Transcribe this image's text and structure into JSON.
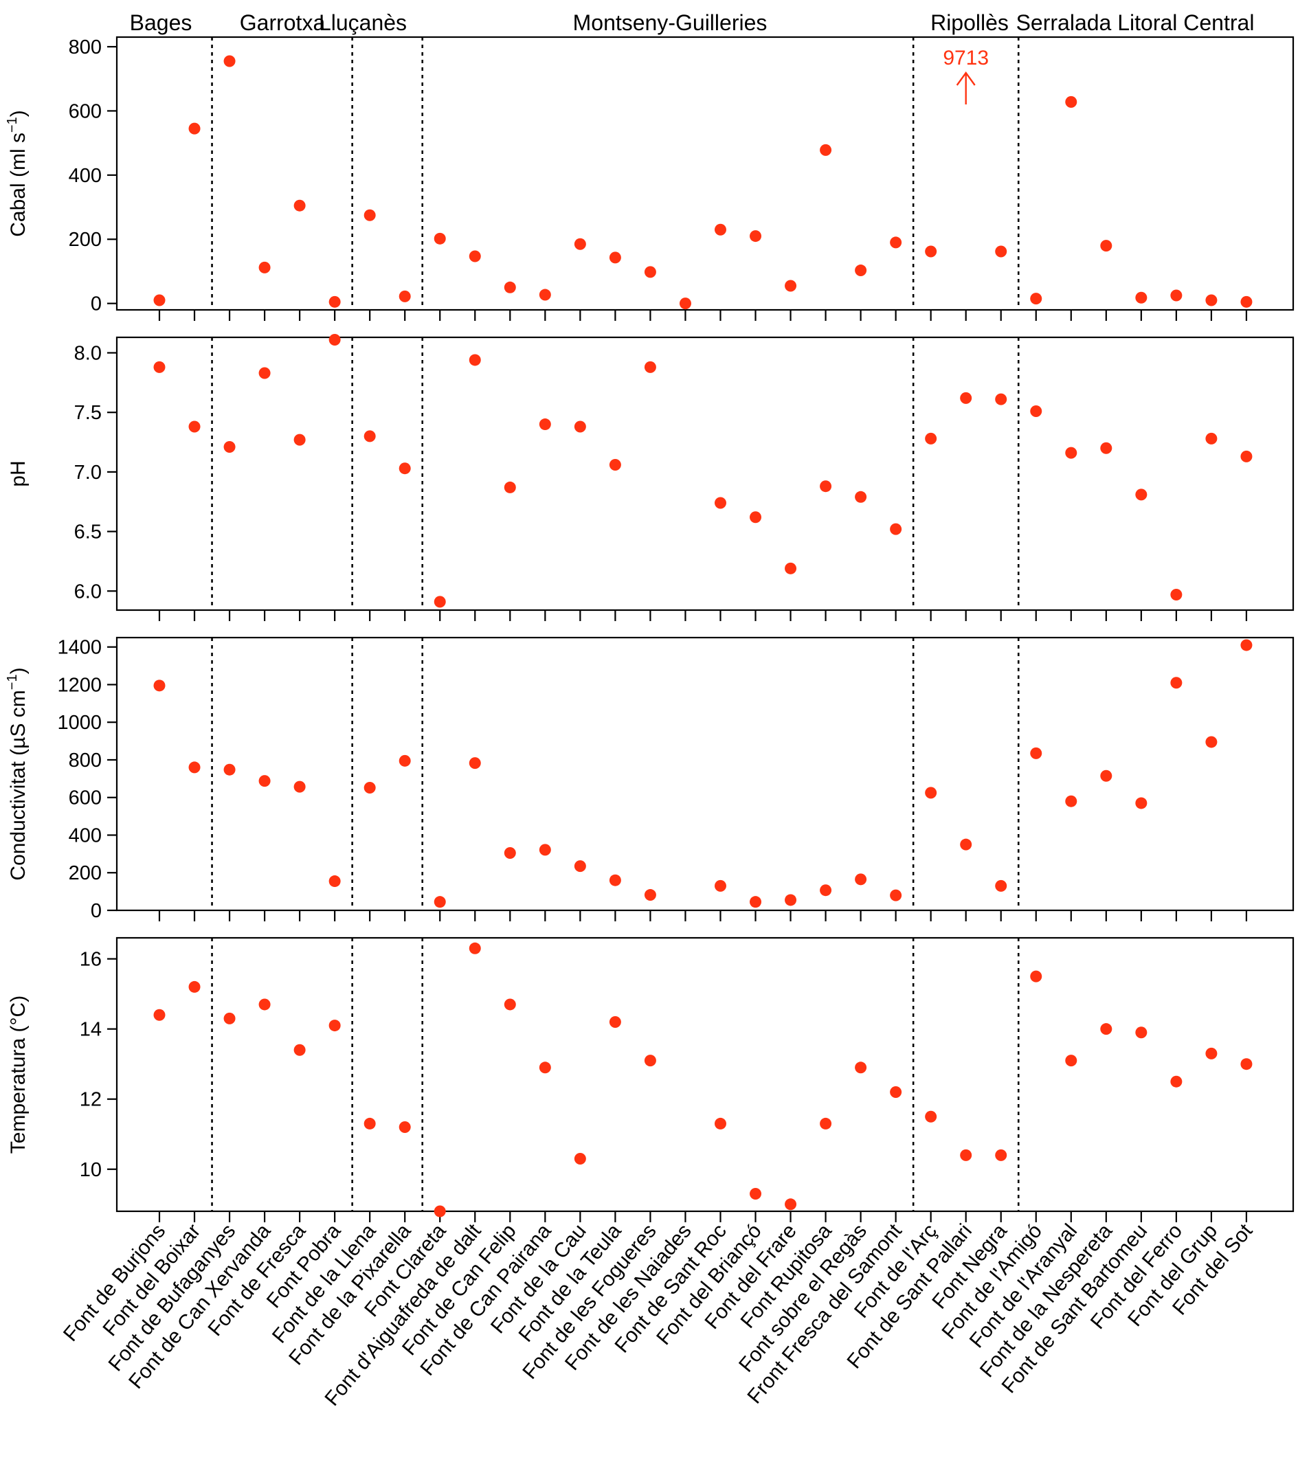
{
  "chart_data": {
    "type": "scatter",
    "point_color": "#ff3311",
    "sites": [
      "Font de Burjons",
      "Font del Boixar",
      "Font de Bufaganyes",
      "Font de Can Xervanda",
      "Font de Fresca",
      "Font Pobra",
      "Font de la Llena",
      "Font de la Pixarella",
      "Font Clareta",
      "Font d'Aiguafreda de dalt",
      "Font de Can Felip",
      "Font de Can Pairana",
      "Font de la Cau",
      "Font de la Teula",
      "Font de les Fogueres",
      "Font de les Naiades",
      "Font de Sant Roc",
      "Font del Briançó",
      "Font del Frare",
      "Font Rupitosa",
      "Font sobre el Regàs",
      "Front Fresca del Samont",
      "Font de l'Arç",
      "Font de Sant Pallari",
      "Font Negra",
      "Font de l'Amigó",
      "Font de l'Aranyal",
      "Font de la Nespereta",
      "Font de Sant Bartomeu",
      "Font del Ferro",
      "Font del Grup",
      "Font del Sot"
    ],
    "regions": [
      {
        "name": "Bages",
        "start": 0,
        "end": 1
      },
      {
        "name": "Garrotxa",
        "start": 2,
        "end": 5
      },
      {
        "name": "Lluçanès",
        "start": 6,
        "end": 7
      },
      {
        "name": "Montseny-Guilleries",
        "start": 8,
        "end": 21
      },
      {
        "name": "Ripollès",
        "start": 22,
        "end": 24
      },
      {
        "name": "Serralada Litoral Central",
        "start": 25,
        "end": 31
      }
    ],
    "panels": [
      {
        "ylabel_main": "Cabal (ml s",
        "ylabel_sup": "−1",
        "ylabel_end": ")",
        "ylim": [
          -20,
          830
        ],
        "yticks": [
          0,
          200,
          400,
          600,
          800
        ],
        "ytick_labels": [
          "0",
          "200",
          "400",
          "600",
          "800"
        ],
        "values": [
          10,
          545,
          755,
          112,
          305,
          5,
          275,
          22,
          202,
          147,
          50,
          27,
          185,
          143,
          98,
          0,
          230,
          210,
          55,
          478,
          103,
          190,
          162,
          null,
          162,
          15,
          628,
          180,
          18,
          25,
          10,
          5
        ],
        "outlier": {
          "index": 23,
          "label": "9713"
        }
      },
      {
        "ylabel_main": "pH",
        "ylabel_sup": "",
        "ylabel_end": "",
        "ylim": [
          5.84,
          8.13
        ],
        "yticks": [
          6.0,
          6.5,
          7.0,
          7.5,
          8.0
        ],
        "ytick_labels": [
          "6.0",
          "6.5",
          "7.0",
          "7.5",
          "8.0"
        ],
        "values": [
          7.88,
          7.38,
          7.21,
          7.83,
          7.27,
          8.11,
          7.3,
          7.03,
          5.91,
          7.94,
          6.87,
          7.4,
          7.38,
          7.06,
          7.88,
          null,
          6.74,
          6.62,
          6.19,
          6.88,
          6.79,
          6.52,
          7.28,
          7.62,
          7.61,
          7.51,
          7.16,
          7.2,
          6.81,
          5.97,
          7.28,
          7.13
        ]
      },
      {
        "ylabel_main": "Conductivitat (µS cm",
        "ylabel_sup": "−1",
        "ylabel_end": ")",
        "ylim": [
          0,
          1450
        ],
        "yticks": [
          0,
          200,
          400,
          600,
          800,
          1000,
          1200,
          1400
        ],
        "ytick_labels": [
          "0",
          "200",
          "400",
          "600",
          "800",
          "1000",
          "1200",
          "1400"
        ],
        "values": [
          1195,
          760,
          748,
          688,
          657,
          155,
          652,
          795,
          45,
          783,
          305,
          322,
          235,
          160,
          82,
          null,
          130,
          45,
          55,
          107,
          165,
          80,
          625,
          350,
          130,
          835,
          580,
          715,
          570,
          1210,
          895,
          1410
        ]
      },
      {
        "ylabel_main": "Temperatura (°C)",
        "ylabel_sup": "",
        "ylabel_end": "",
        "ylim": [
          8.8,
          16.6
        ],
        "yticks": [
          10,
          12,
          14,
          16
        ],
        "ytick_labels": [
          "10",
          "12",
          "14",
          "16"
        ],
        "values": [
          14.4,
          15.2,
          14.3,
          14.7,
          13.4,
          14.1,
          11.3,
          11.2,
          8.8,
          16.3,
          14.7,
          12.9,
          10.3,
          14.2,
          13.1,
          null,
          11.3,
          9.3,
          9.0,
          11.3,
          12.9,
          12.2,
          11.5,
          10.4,
          10.4,
          15.5,
          13.1,
          14.0,
          13.9,
          12.5,
          13.3,
          13.0
        ]
      }
    ]
  }
}
